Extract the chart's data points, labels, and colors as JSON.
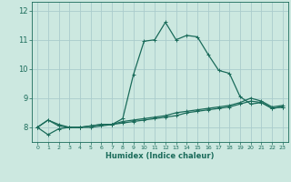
{
  "xlabel": "Humidex (Indice chaleur)",
  "background_color": "#cce8e0",
  "grid_color": "#aacccc",
  "line_color": "#1a6b5a",
  "x_ticks": [
    0,
    1,
    2,
    3,
    4,
    5,
    6,
    7,
    8,
    9,
    10,
    11,
    12,
    13,
    14,
    15,
    16,
    17,
    18,
    19,
    20,
    21,
    22,
    23
  ],
  "y_ticks": [
    8,
    9,
    10,
    11,
    12
  ],
  "ylim": [
    7.5,
    12.3
  ],
  "xlim": [
    -0.5,
    23.5
  ],
  "series": [
    [
      8.0,
      8.25,
      8.1,
      8.0,
      8.0,
      8.05,
      8.1,
      8.1,
      8.3,
      9.8,
      10.95,
      11.0,
      11.6,
      11.0,
      11.15,
      11.1,
      10.5,
      9.95,
      9.85,
      9.05,
      8.8,
      8.85,
      8.65,
      8.7
    ],
    [
      8.0,
      8.25,
      8.05,
      8.0,
      8.0,
      8.05,
      8.1,
      8.1,
      8.2,
      8.25,
      8.3,
      8.35,
      8.4,
      8.5,
      8.55,
      8.6,
      8.65,
      8.7,
      8.75,
      8.85,
      9.0,
      8.9,
      8.7,
      8.75
    ],
    [
      8.0,
      7.75,
      7.95,
      8.0,
      8.0,
      8.0,
      8.05,
      8.1,
      8.15,
      8.2,
      8.25,
      8.3,
      8.35,
      8.4,
      8.5,
      8.55,
      8.6,
      8.65,
      8.7,
      8.8,
      8.9,
      8.85,
      8.65,
      8.7
    ]
  ]
}
